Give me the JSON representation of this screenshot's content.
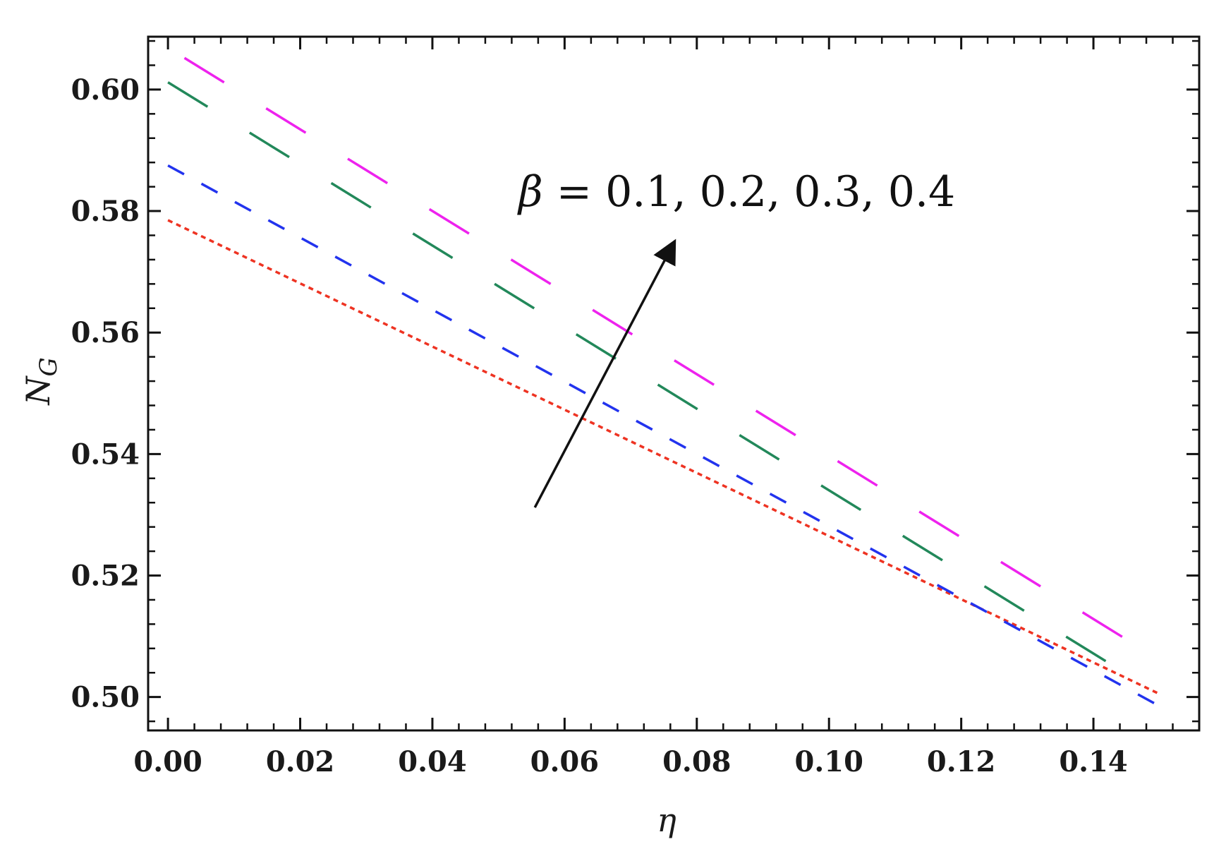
{
  "chart_data": {
    "type": "line",
    "title": "",
    "xlabel": "η",
    "ylabel_main": "N",
    "ylabel_sub": "G",
    "xlim": [
      -0.003,
      0.156
    ],
    "ylim": [
      0.4945,
      0.6087
    ],
    "xticks": [
      0.0,
      0.02,
      0.04,
      0.06,
      0.08,
      0.1,
      0.12,
      0.14
    ],
    "xtick_labels": [
      "0.00",
      "0.02",
      "0.04",
      "0.06",
      "0.08",
      "0.10",
      "0.12",
      "0.14"
    ],
    "yticks": [
      0.5,
      0.52,
      0.54,
      0.56,
      0.58,
      0.6
    ],
    "ytick_labels": [
      "0.50",
      "0.52",
      "0.54",
      "0.56",
      "0.58",
      "0.60"
    ],
    "grid": false,
    "annotation": {
      "symbol": "β",
      "text": " = 0.1, 0.2, 0.3, 0.4",
      "arrow_from": [
        0.0555,
        0.5312
      ],
      "arrow_to": [
        0.0765,
        0.5747
      ]
    },
    "series": [
      {
        "color": "#ee3322",
        "dash": "dotted",
        "x": [
          0.0,
          0.15
        ],
        "y": [
          0.5785,
          0.5005
        ]
      },
      {
        "color": "#2233ee",
        "dash": "dashed",
        "x": [
          0.0,
          0.15
        ],
        "y": [
          0.5875,
          0.4985
        ]
      },
      {
        "color": "#22885a",
        "dash": "long-dashed",
        "x": [
          0.0,
          0.145
        ],
        "y": [
          0.6012,
          0.5038
        ]
      },
      {
        "color": "#ee22ee",
        "dash": "long-dashed",
        "x": [
          0.0025,
          0.1475
        ],
        "y": [
          0.6052,
          0.5078
        ]
      }
    ]
  }
}
